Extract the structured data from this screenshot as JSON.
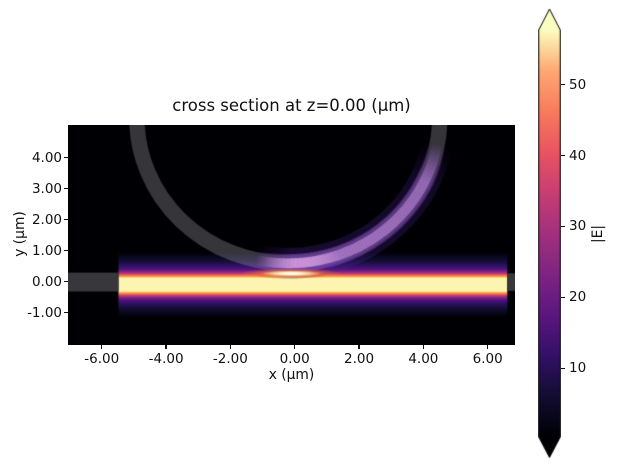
{
  "colors": {
    "figure_background": "#ffffff",
    "plot_background": "#000004",
    "structure_overlay_rgba": "rgba(170,170,182,0.31)",
    "structure_gray": "#37373c",
    "text": "#111111"
  },
  "chart_data": {
    "type": "heatmap",
    "title": "cross section at z=0.00 (μm)",
    "xlabel": "x (μm)",
    "ylabel": "y (μm)",
    "xlim": [
      -7.05,
      6.85
    ],
    "ylim": [
      -2.05,
      5.06
    ],
    "x_tick_values": [
      -6,
      -4,
      -2,
      0,
      2,
      4,
      6
    ],
    "x_ticks": [
      "-6.00",
      "-4.00",
      "-2.00",
      "0.00",
      "2.00",
      "4.00",
      "6.00"
    ],
    "y_tick_values": [
      4,
      3,
      2,
      1,
      0,
      -1
    ],
    "y_ticks": [
      "4.00",
      "3.00",
      "2.00",
      "1.00",
      "0.00",
      "-1.00"
    ],
    "grid": false,
    "colormap": "magma",
    "colormap_stops": [
      [
        0.0,
        "#000004"
      ],
      [
        0.1,
        "#120d31"
      ],
      [
        0.2,
        "#331067"
      ],
      [
        0.3,
        "#5c167f"
      ],
      [
        0.4,
        "#7f2482"
      ],
      [
        0.5,
        "#a3307e"
      ],
      [
        0.6,
        "#c83e73"
      ],
      [
        0.7,
        "#e95462"
      ],
      [
        0.8,
        "#f97b5d"
      ],
      [
        0.9,
        "#fea873"
      ],
      [
        1.0,
        "#fcfdbf"
      ]
    ],
    "colorbar": {
      "label": "|E|",
      "ticks": [
        50,
        40,
        30,
        20,
        10
      ],
      "vmin": 0.3,
      "vmax": 57.7,
      "extend": "both"
    },
    "structures": {
      "ring": {
        "center_x": -0.2,
        "center_y": 5.3,
        "outer_radius": 4.96,
        "inner_radius": 4.46
      },
      "left_stub": {
        "x0": -7.05,
        "x1": -5.48,
        "y0": -0.32,
        "y1": 0.29
      },
      "right_stub": {
        "x0": 6.61,
        "x1": 6.85,
        "y0": -0.3,
        "y1": 0.27
      }
    },
    "field": {
      "bus_waveguide": {
        "x0": -5.48,
        "x1": 6.61,
        "center_y": -0.1,
        "glow_half_height": 1.05
      },
      "bus_gradient_stops": [
        [
          0.0,
          "#000004"
        ],
        [
          0.13,
          "#120d32"
        ],
        [
          0.205,
          "#2c115f"
        ],
        [
          0.262,
          "#51127c"
        ],
        [
          0.3,
          "#812581"
        ],
        [
          0.329,
          "#b73779"
        ],
        [
          0.352,
          "#f1605d"
        ],
        [
          0.376,
          "#fca636"
        ],
        [
          0.4,
          "#fcf4b0"
        ],
        [
          0.6,
          "#fcf4b0"
        ],
        [
          0.624,
          "#fca636"
        ],
        [
          0.648,
          "#f1605d"
        ],
        [
          0.671,
          "#b73779"
        ],
        [
          0.7,
          "#812581"
        ],
        [
          0.738,
          "#51127c"
        ],
        [
          0.795,
          "#2c115f"
        ],
        [
          0.87,
          "#120d32"
        ],
        [
          1.0,
          "#000004"
        ]
      ],
      "ring_glow": {
        "start_angle_deg": 103,
        "peak_angle_deg": 88,
        "fade_start_deg": 26,
        "end_angle_deg": 10,
        "layers": [
          {
            "width_um": 1.0,
            "color": "70,35,135",
            "alpha": 0.35
          },
          {
            "width_um": 0.6,
            "color": "130,75,185",
            "alpha": 0.55
          },
          {
            "width_um": 0.33,
            "color": "195,140,220",
            "alpha": 0.72
          }
        ],
        "hot_layer": {
          "angle_from": 70,
          "angle_to": 100,
          "width_um": 0.3,
          "color": "248,185,235",
          "alpha": 0.45
        }
      },
      "coupling_spot": {
        "x": -0.1,
        "y": 0.26,
        "layers": [
          {
            "rx": 1.6,
            "ry": 0.17,
            "color": "245,120,50",
            "alpha": 0.75
          },
          {
            "rx": 0.95,
            "ry": 0.1,
            "color": "253,240,185",
            "alpha": 0.95
          },
          {
            "rx": 0.5,
            "ry": 0.055,
            "color": "255,253,235",
            "alpha": 1.0
          }
        ]
      }
    }
  }
}
